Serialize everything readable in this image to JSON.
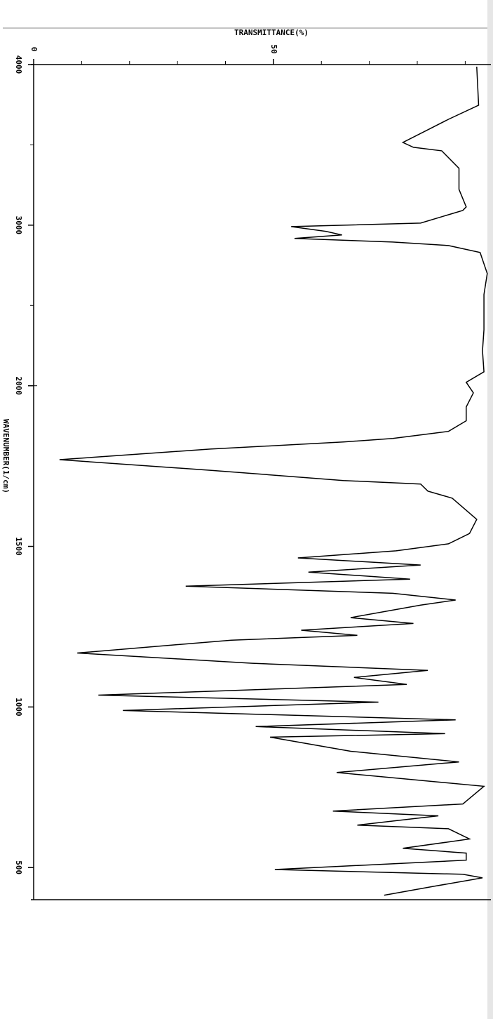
{
  "chart_data": {
    "type": "line",
    "xlabel": "WAVENUMBER(1/cm)",
    "ylabel": "TRANSMITTANCE(%)",
    "x": [
      3987,
      3747,
      3659,
      3594,
      3515,
      3485,
      3463,
      3354,
      3223,
      3114,
      3092,
      3013,
      2991,
      2961,
      2939,
      2917,
      2895,
      2873,
      2830,
      2699,
      2568,
      2349,
      2218,
      2087,
      2022,
      1978,
      1934,
      1891,
      1858,
      1836,
      1825,
      1803,
      1770,
      1737,
      1705,
      1694,
      1672,
      1650,
      1584,
      1540,
      1508,
      1486,
      1464,
      1442,
      1420,
      1398,
      1376,
      1354,
      1333,
      1317,
      1278,
      1260,
      1239,
      1223,
      1208,
      1168,
      1136,
      1114,
      1092,
      1070,
      1037,
      1015,
      989,
      960,
      939,
      917,
      906,
      862,
      829,
      796,
      753,
      698,
      676,
      661,
      632,
      621,
      589,
      560,
      545,
      523,
      494,
      479,
      468,
      442,
      414
    ],
    "values": [
      92.4,
      92.8,
      86.5,
      82.2,
      77.0,
      79.2,
      85.1,
      88.7,
      88.7,
      90.2,
      89.5,
      80.7,
      53.7,
      61.0,
      64.3,
      54.4,
      74.9,
      86.5,
      93.1,
      94.6,
      93.9,
      93.9,
      93.6,
      93.9,
      90.2,
      91.7,
      90.2,
      90.2,
      86.5,
      74.9,
      64.6,
      36.8,
      5.4,
      36.8,
      64.6,
      80.7,
      82.2,
      87.3,
      92.4,
      90.9,
      86.5,
      75.6,
      55.1,
      80.7,
      57.3,
      78.5,
      31.7,
      74.9,
      88.0,
      80.7,
      66.1,
      79.2,
      55.8,
      67.5,
      41.2,
      9.1,
      45.6,
      82.2,
      66.8,
      77.8,
      13.5,
      71.9,
      18.6,
      88.0,
      46.3,
      85.8,
      49.3,
      66.1,
      88.7,
      63.2,
      93.9,
      89.5,
      62.4,
      84.4,
      67.5,
      86.5,
      90.9,
      77.0,
      90.2,
      90.2,
      50.3,
      89.5,
      93.6,
      83.6,
      73.1
    ],
    "color": "#000000",
    "xlim": [
      4000,
      400
    ],
    "x_scale_change": 2000,
    "xticks": [
      4000,
      3000,
      2000,
      1500,
      1000,
      500
    ],
    "xminor_ticks": [
      3500,
      2500
    ],
    "ylim": [
      0,
      95.5
    ],
    "yticks": [
      0,
      50
    ],
    "yminor_ticks": [
      10,
      20,
      30,
      40,
      60,
      70,
      80,
      90
    ]
  }
}
